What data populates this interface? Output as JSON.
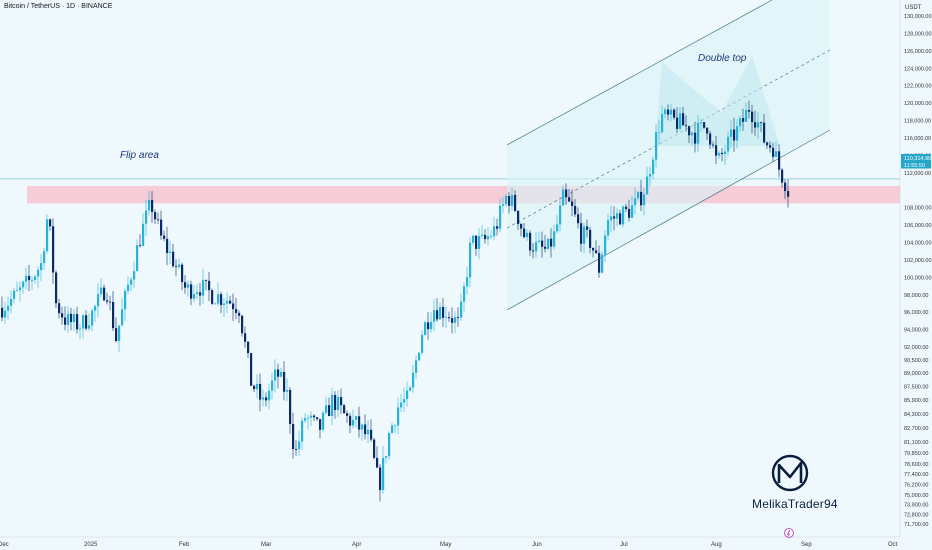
{
  "header": {
    "title": "Bitcoin / TetherUS · 1D · BINANCE",
    "currency": "USDT"
  },
  "annotations": {
    "flip_area": "Flip area",
    "double_top": "Double top"
  },
  "price_tags": {
    "last": "110,314.90",
    "countdown": "11:55:50"
  },
  "logo": {
    "name": "MelikaTrader94"
  },
  "colors": {
    "up": "#26b3d9",
    "down": "#0b2a66",
    "zone": "#f7c6cf",
    "channel": "#4a7a8a",
    "text_annot": "#1b3a7a"
  },
  "chart_data": {
    "type": "candlestick",
    "title": "Bitcoin / TetherUS · 1D · BINANCE",
    "xlabel": "",
    "ylabel": "USDT",
    "ylim": [
      71000,
      130000
    ],
    "x_tick_labels": [
      "Dec",
      "2025",
      "Feb",
      "Mar",
      "Apr",
      "May",
      "Jun",
      "Jul",
      "Aug",
      "Sep",
      "Oct"
    ],
    "y_tick_labels": [
      "130,000.00",
      "128,000.00",
      "126,000.00",
      "124,000.00",
      "122,000.00",
      "120,000.00",
      "118,000.00",
      "116,000.00",
      "114,000.00",
      "112,000.00",
      "108,000.00",
      "106,000.00",
      "104,000.00",
      "102,000.00",
      "100,000.00",
      "98,000.00",
      "96,000.00",
      "94,000.00",
      "92,000.00",
      "90,500.00",
      "89,000.00",
      "87,500.00",
      "85,900.00",
      "84,300.00",
      "82,700.00",
      "81,100.00",
      "79,850.00",
      "78,600.00",
      "77,400.00",
      "76,200.00",
      "75,000.00",
      "73,900.00",
      "72,800.00",
      "71,700.00"
    ],
    "close_path": [
      [
        0,
        96500
      ],
      [
        14,
        97800
      ],
      [
        28,
        99500
      ],
      [
        40,
        101500
      ],
      [
        47,
        107500
      ],
      [
        55,
        97000
      ],
      [
        65,
        95000
      ],
      [
        80,
        94500
      ],
      [
        92,
        96000
      ],
      [
        105,
        99000
      ],
      [
        115,
        93000
      ],
      [
        128,
        99500
      ],
      [
        140,
        105000
      ],
      [
        150,
        108500
      ],
      [
        160,
        104500
      ],
      [
        172,
        102000
      ],
      [
        185,
        98500
      ],
      [
        198,
        99000
      ],
      [
        212,
        98000
      ],
      [
        226,
        97500
      ],
      [
        238,
        96500
      ],
      [
        250,
        88000
      ],
      [
        262,
        85500
      ],
      [
        276,
        89000
      ],
      [
        286,
        86500
      ],
      [
        294,
        79500
      ],
      [
        304,
        84000
      ],
      [
        318,
        82500
      ],
      [
        332,
        86000
      ],
      [
        344,
        84000
      ],
      [
        356,
        83000
      ],
      [
        368,
        81500
      ],
      [
        378,
        76000
      ],
      [
        388,
        82000
      ],
      [
        398,
        85500
      ],
      [
        408,
        86000
      ],
      [
        420,
        93500
      ],
      [
        432,
        96500
      ],
      [
        446,
        96000
      ],
      [
        458,
        94500
      ],
      [
        470,
        104000
      ],
      [
        482,
        104000
      ],
      [
        494,
        105500
      ],
      [
        506,
        109500
      ],
      [
        514,
        108000
      ],
      [
        524,
        104500
      ],
      [
        534,
        103500
      ],
      [
        546,
        103000
      ],
      [
        554,
        105000
      ],
      [
        562,
        109000
      ],
      [
        570,
        108000
      ],
      [
        580,
        105000
      ],
      [
        590,
        104000
      ],
      [
        598,
        101000
      ],
      [
        606,
        106500
      ],
      [
        616,
        107000
      ],
      [
        626,
        107500
      ],
      [
        636,
        108500
      ],
      [
        645,
        110500
      ],
      [
        652,
        114500
      ],
      [
        660,
        118500
      ],
      [
        672,
        118000
      ],
      [
        682,
        117500
      ],
      [
        694,
        116500
      ],
      [
        706,
        117500
      ],
      [
        716,
        113000
      ],
      [
        728,
        115500
      ],
      [
        740,
        117500
      ],
      [
        748,
        119500
      ],
      [
        756,
        118000
      ],
      [
        764,
        115500
      ],
      [
        772,
        115000
      ],
      [
        778,
        112500
      ],
      [
        786,
        110500
      ],
      [
        789,
        109000
      ]
    ]
  }
}
